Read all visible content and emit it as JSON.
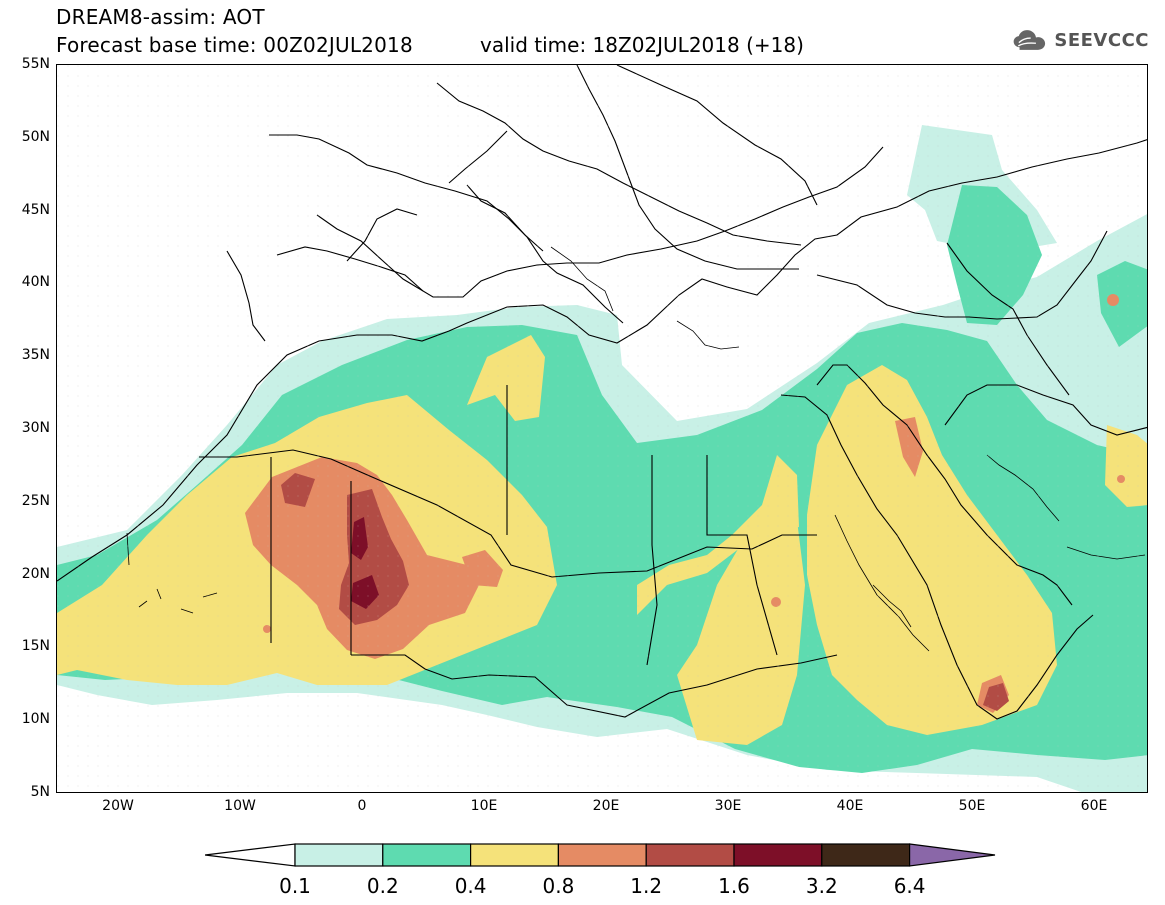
{
  "header": {
    "title": "DREAM8-assim: AOT",
    "base_time": "Forecast base time: 00Z02JUL2018",
    "valid_time": "valid time: 18Z02JUL2018 (+18)"
  },
  "logo": {
    "text": "SEEVCCC",
    "icon": "cloud-icon"
  },
  "map": {
    "latitude_labels": [
      "55N",
      "50N",
      "45N",
      "40N",
      "35N",
      "30N",
      "25N",
      "20N",
      "15N",
      "10N",
      "5N"
    ],
    "longitude_labels": [
      "20W",
      "10W",
      "0",
      "10E",
      "20E",
      "30E",
      "40E",
      "50E",
      "60E"
    ]
  },
  "legend": {
    "levels": [
      "0.1",
      "0.2",
      "0.4",
      "0.8",
      "1.2",
      "1.6",
      "3.2",
      "6.4"
    ],
    "colors": [
      "#c8f0e6",
      "#5edbb0",
      "#f5e27a",
      "#e58b64",
      "#b24c45",
      "#7d0f28",
      "#3e2818",
      "#8a67a8"
    ]
  }
}
